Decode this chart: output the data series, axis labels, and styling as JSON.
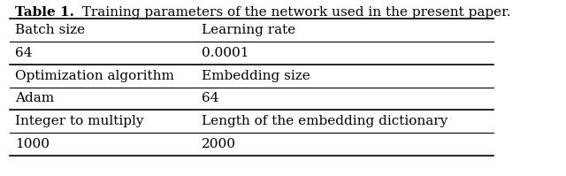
{
  "title": "Table 1.  Training parameters of the network used in the present paper.",
  "title_bold": "Table 1.",
  "title_rest": "  Training parameters of the network used in the present paper.",
  "columns": [
    0.03,
    0.4
  ],
  "rows": [
    {
      "labels": [
        "Batch size",
        "Learning rate"
      ],
      "is_header": true
    },
    {
      "labels": [
        "64",
        "0.0001"
      ],
      "is_header": false
    },
    {
      "labels": [
        "Optimization algorithm",
        "Embedding size"
      ],
      "is_header": true
    },
    {
      "labels": [
        "Adam",
        "64"
      ],
      "is_header": false
    },
    {
      "labels": [
        "Integer to multiply",
        "Length of the embedding dictionary"
      ],
      "is_header": true
    },
    {
      "labels": [
        "1000",
        "2000"
      ],
      "is_header": false
    }
  ],
  "bg_color": "#ffffff",
  "text_color": "#000000",
  "line_color": "#000000",
  "fontsize": 11,
  "title_fontsize": 11
}
